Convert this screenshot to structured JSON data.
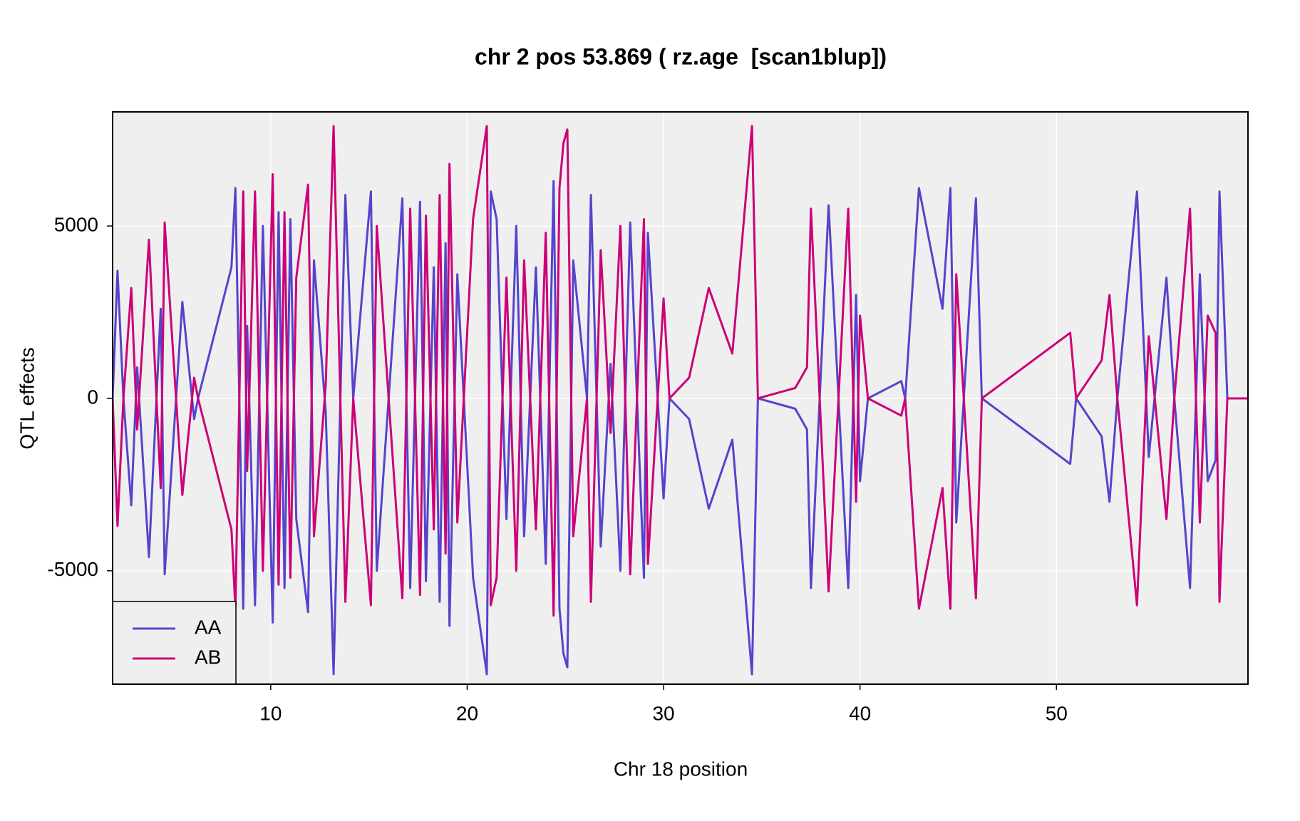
{
  "chart_data": {
    "type": "line",
    "title": "chr 2 pos 53.869 ( rz.age  [scan1blup])",
    "xlabel": "Chr 18 position",
    "ylabel": "QTL effects",
    "x": [
      1.95,
      2.2,
      2.5,
      2.9,
      3.2,
      3.8,
      4.4,
      4.6,
      5.5,
      6.1,
      6.3,
      8.0,
      8.2,
      8.6,
      8.8,
      9.2,
      9.6,
      10.1,
      10.4,
      10.7,
      11.0,
      11.3,
      11.9,
      12.2,
      12.8,
      13.2,
      13.8,
      14.2,
      15.1,
      15.4,
      16.7,
      17.1,
      17.6,
      17.9,
      18.3,
      18.6,
      18.9,
      19.1,
      19.5,
      20.3,
      21.0,
      21.2,
      21.5,
      22.0,
      22.5,
      22.9,
      23.5,
      24.0,
      24.4,
      24.7,
      24.9,
      25.1,
      25.4,
      26.1,
      26.3,
      26.8,
      27.3,
      27.8,
      28.3,
      29.0,
      29.2,
      30.0,
      30.3,
      31.3,
      32.3,
      33.5,
      34.5,
      34.8,
      36.7,
      37.3,
      37.5,
      38.4,
      39.4,
      39.8,
      40.0,
      40.4,
      42.1,
      42.3,
      43.0,
      44.2,
      44.6,
      44.9,
      45.9,
      46.2,
      50.7,
      51.0,
      52.3,
      52.7,
      53.1,
      54.1,
      54.7,
      55.6,
      56.0,
      56.8,
      57.3,
      57.7,
      58.1,
      58.3,
      58.7,
      59.75
    ],
    "series": [
      {
        "name": "AA",
        "color": "#5544cc",
        "values": [
          0,
          3700,
          0,
          -3100,
          900,
          -4600,
          2600,
          -5100,
          2800,
          -600,
          0,
          3800,
          6100,
          -6100,
          2100,
          -6000,
          5000,
          -6500,
          5400,
          -5500,
          5200,
          -3500,
          -6200,
          4000,
          -400,
          -8000,
          5900,
          0,
          6000,
          -5000,
          5800,
          -5500,
          5700,
          -5300,
          3800,
          -5900,
          4500,
          -6600,
          3600,
          -5200,
          -8000,
          6000,
          5200,
          -3500,
          5000,
          -4000,
          3800,
          -4800,
          6300,
          -6100,
          -7400,
          -7800,
          4000,
          0,
          5900,
          -4300,
          1000,
          -5000,
          5100,
          -5200,
          4800,
          -2900,
          0,
          -600,
          -3200,
          -1200,
          -8000,
          0,
          -300,
          -900,
          -5500,
          5600,
          -5500,
          3000,
          -2400,
          0,
          500,
          0,
          6100,
          2600,
          6100,
          -3600,
          5800,
          0,
          -1900,
          0,
          -1100,
          -3000,
          0,
          6000,
          -1700,
          3500,
          0,
          -5500,
          3600,
          -2400,
          -1800,
          6000,
          0,
          0
        ]
      },
      {
        "name": "AB",
        "color": "#cc0077",
        "values": [
          0,
          -3700,
          0,
          3200,
          -900,
          4600,
          -2600,
          5100,
          -2800,
          600,
          0,
          -3800,
          -6100,
          6000,
          -2100,
          6000,
          -5000,
          6500,
          -5400,
          5400,
          -5200,
          3500,
          6200,
          -4000,
          400,
          7900,
          -5900,
          0,
          -6000,
          5000,
          -5800,
          5500,
          -5700,
          5300,
          -3800,
          5900,
          -4500,
          6800,
          -3600,
          5200,
          7900,
          -6000,
          -5200,
          3500,
          -5000,
          4000,
          -3800,
          4800,
          -6300,
          6100,
          7400,
          7800,
          -4000,
          0,
          -5900,
          4300,
          -1000,
          5000,
          -5100,
          5200,
          -4800,
          2900,
          0,
          600,
          3200,
          1300,
          7900,
          0,
          300,
          900,
          5500,
          -5600,
          5500,
          -3000,
          2400,
          0,
          -500,
          0,
          -6100,
          -2600,
          -6100,
          3600,
          -5800,
          0,
          1900,
          0,
          1100,
          3000,
          0,
          -6000,
          1800,
          -3500,
          0,
          5500,
          -3600,
          2400,
          1900,
          -5900,
          0,
          0
        ]
      }
    ],
    "xlim": [
      1.95,
      59.75
    ],
    "xticks": [
      10,
      20,
      30,
      40,
      50
    ],
    "ylim": [
      -8290,
      8310
    ],
    "yticks": [
      -5000,
      0,
      5000
    ],
    "grid": true,
    "legend": "bottom-left"
  }
}
